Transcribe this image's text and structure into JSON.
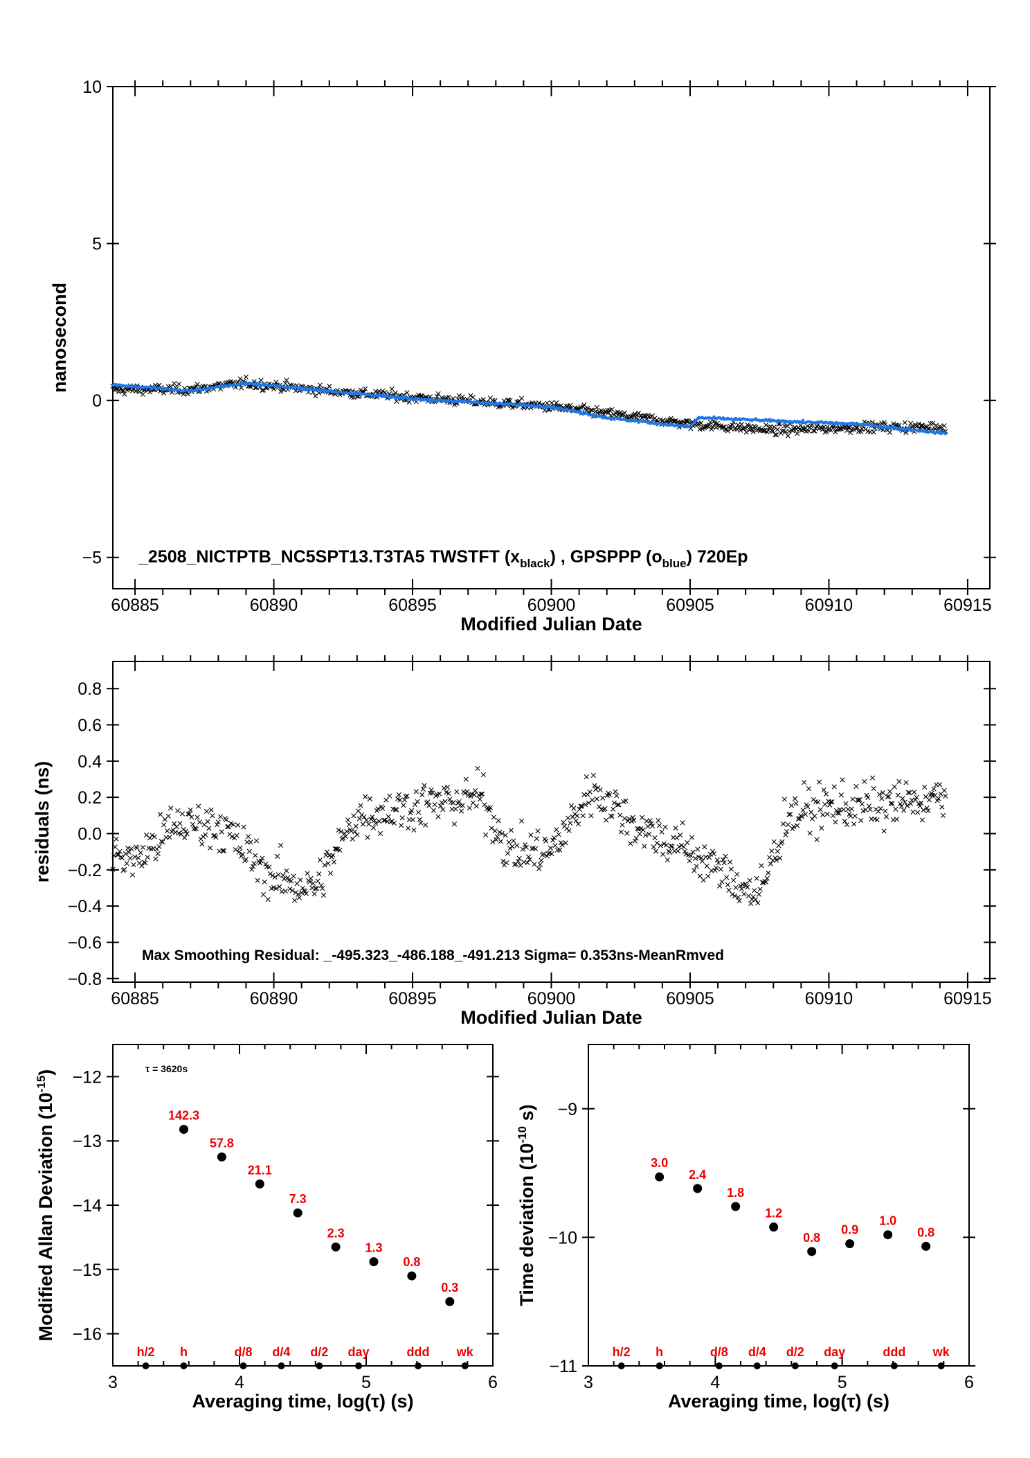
{
  "colors": {
    "black_series": "#000000",
    "blue_series": "#1f78e6",
    "red_labels": "#ee0000"
  },
  "chart_data": [
    {
      "type": "scatter",
      "ylabel": "nanosecond",
      "xlabel": "Modified Julian Date",
      "xlim": [
        60884.2,
        60915.8
      ],
      "ylim": [
        -6.0,
        10.0
      ],
      "xticks": [
        60885,
        60890,
        60895,
        60900,
        60905,
        60910,
        60915
      ],
      "yticks": [
        -5,
        0,
        5,
        10
      ],
      "annotation": {
        "title": "_2508_NICTPTB_NC5SPT13.T3TA5",
        "series1": "TWSTFT (x",
        "series1_sub": "black",
        "series2": "GPSPPP (o",
        "series2_sub": "blue",
        "epochs": "720Ep"
      },
      "x_range": [
        60884.2,
        60914.2
      ],
      "series": [
        {
          "name": "TWSTFT",
          "marker": "x",
          "color": "#000000",
          "trend": [
            [
              60884.2,
              0.35
            ],
            [
              60887,
              0.35
            ],
            [
              60889,
              0.55
            ],
            [
              60892,
              0.3
            ],
            [
              60895,
              0.1
            ],
            [
              60900,
              -0.2
            ],
            [
              60905,
              -0.75
            ],
            [
              60908,
              -0.95
            ],
            [
              60911,
              -0.85
            ],
            [
              60914.2,
              -0.85
            ]
          ]
        },
        {
          "name": "GPSPPP",
          "marker": "o",
          "color": "#1f78e6",
          "trend": [
            [
              60884.2,
              0.5
            ],
            [
              60887,
              0.3
            ],
            [
              60889,
              0.55
            ],
            [
              60892,
              0.3
            ],
            [
              60895,
              0.05
            ],
            [
              60900,
              -0.2
            ],
            [
              60902,
              -0.55
            ],
            [
              60905,
              -0.85
            ],
            [
              60905.3,
              -0.55
            ],
            [
              60908,
              -0.65
            ],
            [
              60911,
              -0.75
            ],
            [
              60914.2,
              -1.05
            ]
          ]
        }
      ]
    },
    {
      "type": "scatter",
      "ylabel": "residuals (ns)",
      "xlabel": "Modified Julian Date",
      "xlim": [
        60884.2,
        60915.8
      ],
      "ylim": [
        -0.82,
        0.95
      ],
      "xticks": [
        60885,
        60890,
        60895,
        60900,
        60905,
        60910,
        60915
      ],
      "yticks": [
        -0.8,
        -0.6,
        -0.4,
        -0.2,
        0.0,
        0.2,
        0.4,
        0.6,
        0.8
      ],
      "ytick_labels": [
        "−0.8",
        "−0.6",
        "−0.4",
        "−0.2",
        "0.0",
        "0.2",
        "0.4",
        "0.6",
        "0.8"
      ],
      "annotation": "Max Smoothing Residual: _-495.323_-486.188_-491.213  Sigma= 0.353ns-MeanRmved",
      "series": [
        {
          "name": "residuals",
          "marker": "x",
          "color": "#000000",
          "trend": [
            [
              60884.2,
              -0.1
            ],
            [
              60885,
              -0.15
            ],
            [
              60886.5,
              0.05
            ],
            [
              60888,
              0.05
            ],
            [
              60890,
              -0.25
            ],
            [
              60891.5,
              -0.3
            ],
            [
              60893,
              0.1
            ],
            [
              60895,
              0.15
            ],
            [
              60897.5,
              0.2
            ],
            [
              60898.5,
              -0.1
            ],
            [
              60900,
              -0.1
            ],
            [
              60901.5,
              0.25
            ],
            [
              60903,
              0.05
            ],
            [
              60905,
              -0.1
            ],
            [
              60907.5,
              -0.35
            ],
            [
              60908.5,
              0.1
            ],
            [
              60910,
              0.15
            ],
            [
              60912,
              0.15
            ],
            [
              60914.2,
              0.2
            ]
          ]
        }
      ]
    },
    {
      "type": "scatter",
      "ylabel": "Modified Allan Deviation (10",
      "ylabel_sup": "-15",
      "ylabel_end": ")",
      "xlabel": "Averaging time, log(τ) (s)",
      "xlim": [
        3,
        6
      ],
      "ylim": [
        -16.5,
        -11.5
      ],
      "xticks": [
        3,
        4,
        5,
        6
      ],
      "yticks": [
        -16,
        -15,
        -14,
        -13,
        -12
      ],
      "tau_note": "τ = 3620s",
      "points": [
        {
          "x": 3.56,
          "y": -12.82,
          "label": "142.3"
        },
        {
          "x": 3.86,
          "y": -13.25,
          "label": "57.8"
        },
        {
          "x": 4.16,
          "y": -13.67,
          "label": "21.1"
        },
        {
          "x": 4.46,
          "y": -14.12,
          "label": "7.3"
        },
        {
          "x": 4.76,
          "y": -14.65,
          "label": "2.3"
        },
        {
          "x": 5.06,
          "y": -14.88,
          "label": "1.3"
        },
        {
          "x": 5.36,
          "y": -15.1,
          "label": "0.8"
        },
        {
          "x": 5.66,
          "y": -15.5,
          "label": "0.3"
        }
      ],
      "markers": [
        {
          "x": 3.26,
          "label": "h/2"
        },
        {
          "x": 3.56,
          "label": "h"
        },
        {
          "x": 4.03,
          "label": "d/8"
        },
        {
          "x": 4.33,
          "label": "d/4"
        },
        {
          "x": 4.63,
          "label": "d/2"
        },
        {
          "x": 4.94,
          "label": "day"
        },
        {
          "x": 5.41,
          "label": "ddd"
        },
        {
          "x": 5.78,
          "label": "wk"
        }
      ]
    },
    {
      "type": "scatter",
      "ylabel": "Time deviation (10",
      "ylabel_sup": "-10",
      "ylabel_end": " s)",
      "xlabel": "Averaging time, log(τ) (s)",
      "xlim": [
        3,
        6
      ],
      "ylim": [
        -11.0,
        -8.5
      ],
      "xticks": [
        3,
        4,
        5,
        6
      ],
      "yticks": [
        -11,
        -10,
        -9
      ],
      "points": [
        {
          "x": 3.56,
          "y": -9.53,
          "label": "3.0"
        },
        {
          "x": 3.86,
          "y": -9.62,
          "label": "2.4"
        },
        {
          "x": 4.16,
          "y": -9.76,
          "label": "1.8"
        },
        {
          "x": 4.46,
          "y": -9.92,
          "label": "1.2"
        },
        {
          "x": 4.76,
          "y": -10.11,
          "label": "0.8"
        },
        {
          "x": 5.06,
          "y": -10.05,
          "label": "0.9"
        },
        {
          "x": 5.36,
          "y": -9.98,
          "label": "1.0"
        },
        {
          "x": 5.66,
          "y": -10.07,
          "label": "0.8"
        }
      ],
      "markers": [
        {
          "x": 3.26,
          "label": "h/2"
        },
        {
          "x": 3.56,
          "label": "h"
        },
        {
          "x": 4.03,
          "label": "d/8"
        },
        {
          "x": 4.33,
          "label": "d/4"
        },
        {
          "x": 4.63,
          "label": "d/2"
        },
        {
          "x": 4.94,
          "label": "day"
        },
        {
          "x": 5.41,
          "label": "ddd"
        },
        {
          "x": 5.78,
          "label": "wk"
        }
      ]
    }
  ]
}
